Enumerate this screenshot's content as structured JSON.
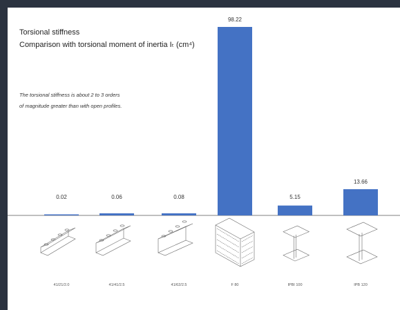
{
  "chart_data": {
    "type": "bar",
    "title": "Torsional stiffness",
    "subtitle": "Comparison with torsional moment of inertia Iₜ (cm⁴)",
    "annotation": "The torsional stiffness is about 2 to 3 orders of magnitude greater than with open profiles.",
    "categories": [
      "41/21/2.0",
      "41/41/2.5",
      "41/62/2.5",
      "F 80",
      "IPBI 100",
      "IPB 120"
    ],
    "values": [
      0.02,
      0.06,
      0.08,
      98.22,
      5.15,
      13.66
    ],
    "value_labels": [
      "0.02",
      "0.06",
      "0.08",
      "98.22",
      "5.15",
      "13.66"
    ],
    "ylim": [
      0,
      98.22
    ],
    "bar_color": "#4472c4",
    "grid": false,
    "profile_icons": [
      "slotted-channel-icon",
      "slotted-channel-icon",
      "slotted-channel-icon",
      "perforated-box-profile-icon",
      "i-beam-icon",
      "i-beam-icon"
    ]
  }
}
